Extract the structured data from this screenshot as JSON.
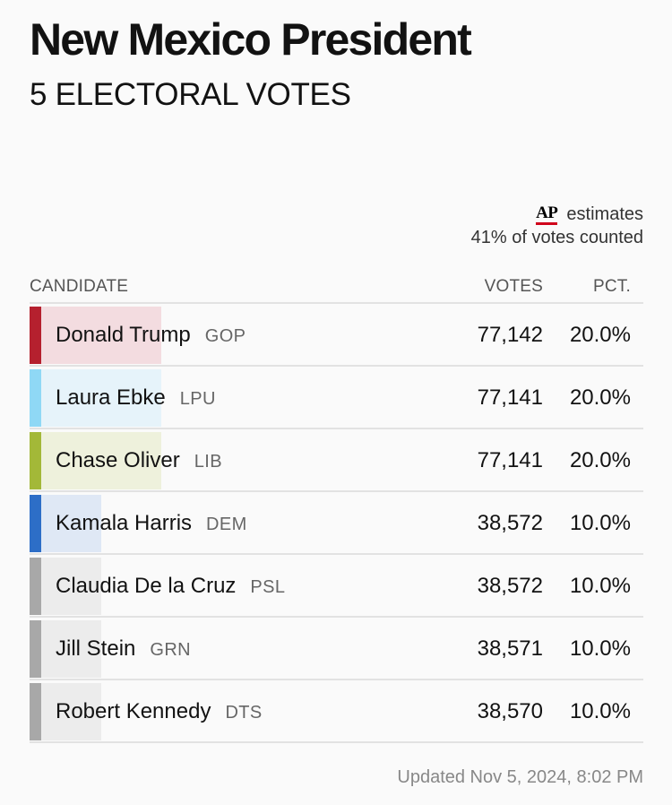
{
  "header": {
    "title": "New Mexico President",
    "subtitle": "5 ELECTORAL VOTES"
  },
  "estimates": {
    "logo_text": "AP",
    "label": "estimates",
    "counted": "41% of votes counted"
  },
  "table": {
    "headers": {
      "candidate": "CANDIDATE",
      "votes": "VOTES",
      "pct": "PCT."
    },
    "rows": [
      {
        "name": "Donald Trump",
        "party": "GOP",
        "votes": "77,142",
        "pct": "20.0%",
        "share": 0.2,
        "accent": "#b5202e",
        "fill": "#f3dce0"
      },
      {
        "name": "Laura Ebke",
        "party": "LPU",
        "votes": "77,141",
        "pct": "20.0%",
        "share": 0.2,
        "accent": "#8fd8f5",
        "fill": "#e6f3fa"
      },
      {
        "name": "Chase Oliver",
        "party": "LIB",
        "votes": "77,141",
        "pct": "20.0%",
        "share": 0.2,
        "accent": "#a3b838",
        "fill": "#eef1dc"
      },
      {
        "name": "Kamala Harris",
        "party": "DEM",
        "votes": "38,572",
        "pct": "10.0%",
        "share": 0.1,
        "accent": "#2d6ec7",
        "fill": "#dfe8f5"
      },
      {
        "name": "Claudia De la Cruz",
        "party": "PSL",
        "votes": "38,572",
        "pct": "10.0%",
        "share": 0.1,
        "accent": "#a8a8a8",
        "fill": "#ececec"
      },
      {
        "name": "Jill Stein",
        "party": "GRN",
        "votes": "38,571",
        "pct": "10.0%",
        "share": 0.1,
        "accent": "#a8a8a8",
        "fill": "#ececec"
      },
      {
        "name": "Robert Kennedy",
        "party": "DTS",
        "votes": "38,570",
        "pct": "10.0%",
        "share": 0.1,
        "accent": "#a8a8a8",
        "fill": "#ececec"
      }
    ]
  },
  "footer": {
    "updated": "Updated Nov 5, 2024, 8:02 PM"
  }
}
